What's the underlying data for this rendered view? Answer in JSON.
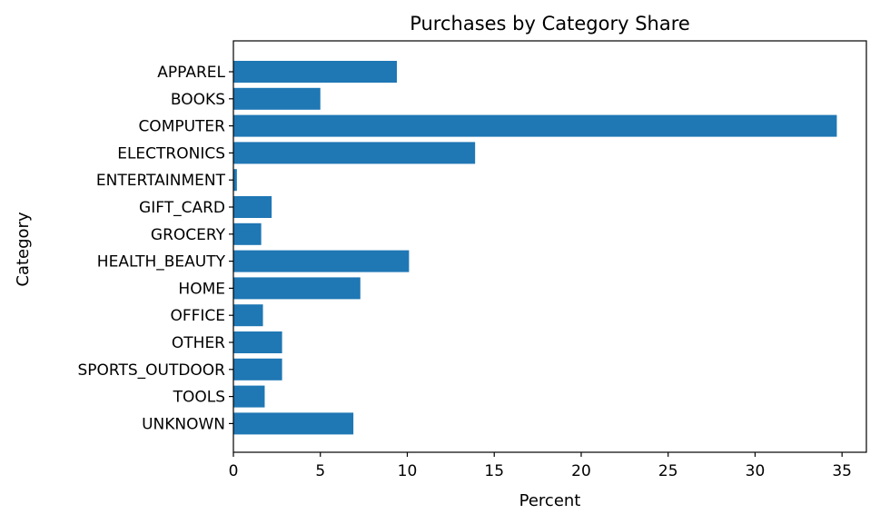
{
  "chart_data": {
    "type": "bar",
    "orientation": "horizontal",
    "title": "Purchases by Category Share",
    "xlabel": "Percent",
    "ylabel": "Category",
    "xlim": [
      0,
      36.4
    ],
    "xticks": [
      0,
      5,
      10,
      15,
      20,
      25,
      30,
      35
    ],
    "categories": [
      "APPAREL",
      "BOOKS",
      "COMPUTER",
      "ELECTRONICS",
      "ENTERTAINMENT",
      "GIFT_CARD",
      "GROCERY",
      "HEALTH_BEAUTY",
      "HOME",
      "OFFICE",
      "OTHER",
      "SPORTS_OUTDOOR",
      "TOOLS",
      "UNKNOWN"
    ],
    "values": [
      9.4,
      5.0,
      34.7,
      13.9,
      0.2,
      2.2,
      1.6,
      10.1,
      7.3,
      1.7,
      2.8,
      2.8,
      1.8,
      6.9
    ],
    "bar_color": "#1f77b4",
    "grid": false,
    "legend": "none"
  }
}
